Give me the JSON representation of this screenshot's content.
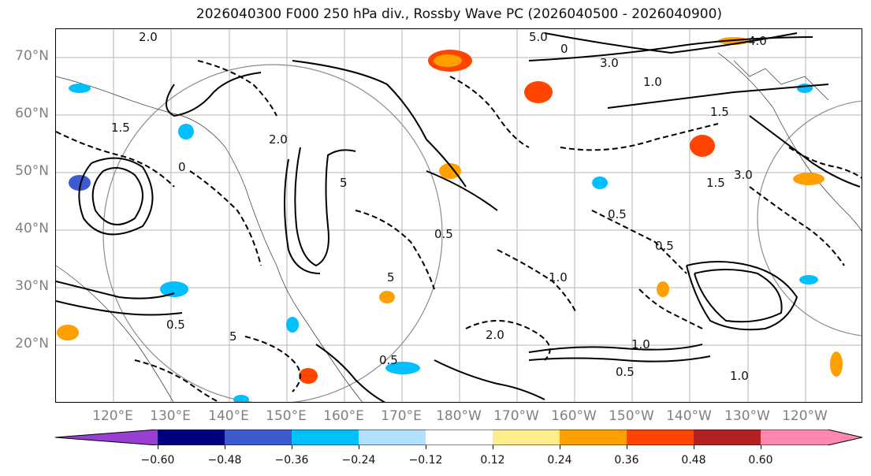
{
  "title": "2026040300 F000 250 hPa div., Rossby Wave PC (2026040500 - 2026040900)",
  "lat_labels": [
    "70°N",
    "60°N",
    "50°N",
    "40°N",
    "30°N",
    "20°N"
  ],
  "lon_labels": [
    "120°E",
    "130°E",
    "140°E",
    "150°E",
    "160°E",
    "170°E",
    "180°W",
    "170°W",
    "160°W",
    "150°W",
    "140°W",
    "130°W",
    "120°W"
  ],
  "contour_labels": [
    "2.0",
    "5.0",
    "3.0",
    "4.0",
    "1.0",
    "1.5",
    "2.0",
    "5",
    "0.5",
    "0.5",
    "1.0",
    "0.5",
    "5",
    "0.5",
    "5",
    "1.5",
    "0",
    "0",
    "2.0",
    "1.0",
    "0.5",
    "1.0",
    "0.5",
    "1.5",
    "3.0"
  ],
  "colorbar": {
    "colors": [
      "#9a3fd4",
      "#000080",
      "#3c5bd1",
      "#00bfff",
      "#b0e2ff",
      "#ffffff",
      "#ffec8b",
      "#ff9f00",
      "#ff4500",
      "#b22222",
      "#ff88b0",
      "#ff88b0"
    ],
    "ticks": [
      "−0.60",
      "−0.48",
      "−0.36",
      "−0.24",
      "−0.12",
      "0.12",
      "0.24",
      "0.36",
      "0.48",
      "0.60"
    ]
  }
}
